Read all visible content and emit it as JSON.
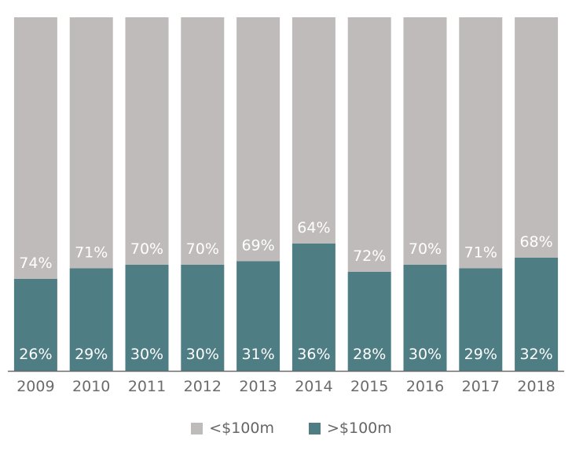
{
  "chart_data": {
    "type": "bar",
    "stacked": true,
    "normalized_100_percent": true,
    "categories": [
      "2009",
      "2010",
      "2011",
      "2012",
      "2013",
      "2014",
      "2015",
      "2016",
      "2017",
      "2018"
    ],
    "series": [
      {
        "name": ">$100m",
        "values": [
          26,
          29,
          30,
          30,
          31,
          36,
          28,
          30,
          29,
          32
        ],
        "color": "#4e7d84",
        "labels": [
          "26%",
          "29%",
          "30%",
          "30%",
          "31%",
          "36%",
          "28%",
          "30%",
          "29%",
          "32%"
        ]
      },
      {
        "name": "<$100m",
        "values": [
          74,
          71,
          70,
          70,
          69,
          64,
          72,
          70,
          71,
          68
        ],
        "color": "#bfbbba",
        "labels": [
          "74%",
          "71%",
          "70%",
          "70%",
          "69%",
          "64%",
          "72%",
          "70%",
          "71%",
          "68%"
        ]
      }
    ],
    "ylim": [
      0,
      100
    ],
    "legend": {
      "position": "bottom",
      "items": [
        {
          "label": "<$100m",
          "color": "#bfbbba"
        },
        {
          "label": ">$100m",
          "color": "#4e7d84"
        }
      ]
    },
    "grid": false,
    "title": "",
    "xlabel": "",
    "ylabel": ""
  }
}
